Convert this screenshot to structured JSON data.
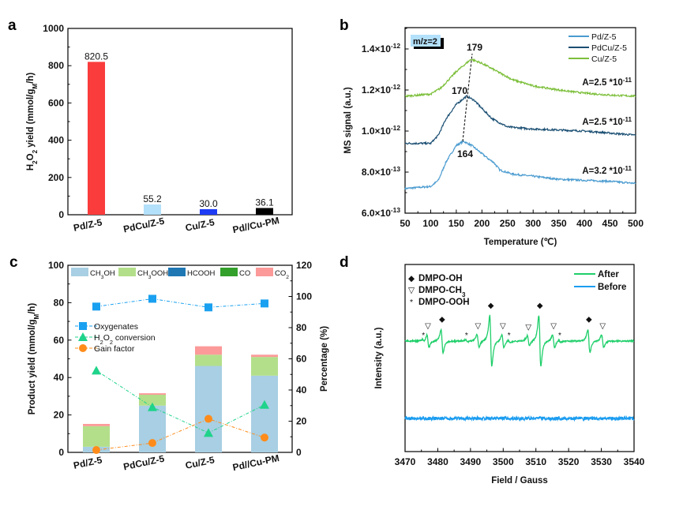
{
  "panels": {
    "a": "a",
    "b": "b",
    "c": "c",
    "d": "d"
  },
  "chart_data": [
    {
      "panel": "a",
      "type": "bar",
      "categories": [
        "Pd/Z-5",
        "PdCu/Z-5",
        "Cu/Z-5",
        "Pd//Cu-PM"
      ],
      "values": [
        820.5,
        55.2,
        30.0,
        36.1
      ],
      "value_labels": [
        "820.5",
        "55.2",
        "30.0",
        "36.1"
      ],
      "colors": [
        "#fa3c3c",
        "#b3e0fb",
        "#1e3cf5",
        "#000000"
      ],
      "ylabel_parts": [
        {
          "t": "H"
        },
        {
          "t": "2",
          "sub": true
        },
        {
          "t": "O"
        },
        {
          "t": "2",
          "sub": true
        },
        {
          "t": " yield (mmol/g"
        },
        {
          "t": "M",
          "sub": true
        },
        {
          "t": "/h)"
        }
      ],
      "ylim": [
        0,
        1000
      ],
      "yticks": [
        0,
        200,
        400,
        600,
        800,
        1000
      ]
    },
    {
      "panel": "b",
      "type": "line",
      "xlabel": "Temperature (℃)",
      "ylabel": "MS signal (a.u.)",
      "xlim": [
        50,
        500
      ],
      "xticks": [
        50,
        100,
        150,
        200,
        250,
        300,
        350,
        400,
        450,
        500
      ],
      "ylim_e13": [
        6,
        15
      ],
      "yticks": [
        {
          "v": 6,
          "base": "6.0×10",
          "exp": "-13"
        },
        {
          "v": 8,
          "base": "8.0×10",
          "exp": "-13"
        },
        {
          "v": 10,
          "base": "1.0×10",
          "exp": "-12"
        },
        {
          "v": 12,
          "base": "1.2×10",
          "exp": "-12"
        },
        {
          "v": 14,
          "base": "1.4×10",
          "exp": "-12"
        }
      ],
      "tag": "m/z=2",
      "series": [
        {
          "name": "Pd/Z-5",
          "color": "#4a9bd0",
          "peak": "164",
          "area": "A=3.2 *10",
          "area_exp": "-11",
          "points": [
            [
              50,
              7.2
            ],
            [
              100,
              7.3
            ],
            [
              115,
              7.6
            ],
            [
              130,
              8.5
            ],
            [
              150,
              9.3
            ],
            [
              164,
              9.5
            ],
            [
              180,
              9.3
            ],
            [
              200,
              8.9
            ],
            [
              215,
              8.6
            ],
            [
              222,
              8.5
            ],
            [
              235,
              8.1
            ],
            [
              260,
              7.9
            ],
            [
              300,
              7.8
            ],
            [
              350,
              7.65
            ],
            [
              400,
              7.6
            ],
            [
              450,
              7.55
            ],
            [
              500,
              7.45
            ]
          ]
        },
        {
          "name": "PdCu/Z-5",
          "color": "#1a4e72",
          "peak": "170",
          "area": "A=2.5 *10",
          "area_exp": "-11",
          "points": [
            [
              50,
              9.4
            ],
            [
              100,
              9.4
            ],
            [
              115,
              9.8
            ],
            [
              130,
              10.6
            ],
            [
              150,
              11.3
            ],
            [
              170,
              11.7
            ],
            [
              185,
              11.5
            ],
            [
              200,
              11.1
            ],
            [
              220,
              10.6
            ],
            [
              250,
              10.2
            ],
            [
              300,
              10.1
            ],
            [
              350,
              10.05
            ],
            [
              400,
              10.0
            ],
            [
              450,
              9.9
            ],
            [
              500,
              9.8
            ]
          ]
        },
        {
          "name": "Cu/Z-5",
          "color": "#7cbf3a",
          "peak": "179",
          "area": "A=2.5 *10",
          "area_exp": "-11",
          "points": [
            [
              50,
              11.7
            ],
            [
              100,
              11.8
            ],
            [
              120,
              12.1
            ],
            [
              150,
              12.9
            ],
            [
              179,
              13.5
            ],
            [
              200,
              13.3
            ],
            [
              230,
              12.9
            ],
            [
              260,
              12.5
            ],
            [
              300,
              12.2
            ],
            [
              350,
              12.0
            ],
            [
              400,
              11.85
            ],
            [
              450,
              11.75
            ],
            [
              500,
              11.7
            ]
          ]
        }
      ]
    },
    {
      "panel": "c",
      "type": "bar",
      "categories": [
        "Pd/Z-5",
        "PdCu/Z-5",
        "Cu/Z-5",
        "Pd//Cu-PM"
      ],
      "ylabel_parts": [
        {
          "t": "Product yield (mmol/g"
        },
        {
          "t": "M",
          "sub": true
        },
        {
          "t": "/h)"
        }
      ],
      "y2label": "Percentage (%)",
      "ylim": [
        0,
        100
      ],
      "y2lim": [
        0,
        120
      ],
      "yticks": [
        0,
        20,
        40,
        60,
        80,
        100
      ],
      "y2ticks": [
        0,
        20,
        40,
        60,
        80,
        100,
        120
      ],
      "stacked_series": [
        {
          "name_parts": [
            {
              "t": "CH"
            },
            {
              "t": "3",
              "sub": true
            },
            {
              "t": "OH"
            }
          ],
          "color": "#a8cfe3",
          "values": [
            3.0,
            25.0,
            46.2,
            41.0
          ]
        },
        {
          "name_parts": [
            {
              "t": "CH"
            },
            {
              "t": "3",
              "sub": true
            },
            {
              "t": "OOH"
            }
          ],
          "color": "#b3df8a",
          "values": [
            11.0,
            5.8,
            6.0,
            10.0
          ]
        },
        {
          "name_parts": [
            {
              "t": "HCOOH"
            }
          ],
          "color": "#1f78b4",
          "values": [
            0,
            0,
            0,
            0
          ]
        },
        {
          "name_parts": [
            {
              "t": "CO"
            }
          ],
          "color": "#33a02c",
          "values": [
            0,
            0,
            0,
            0
          ]
        },
        {
          "name_parts": [
            {
              "t": "CO"
            },
            {
              "t": "2",
              "sub": true
            }
          ],
          "color": "#fb9a99",
          "values": [
            1.2,
            0.8,
            4.5,
            1.2
          ]
        }
      ],
      "line_series": [
        {
          "name_parts": [
            {
              "t": "Oxygenates"
            }
          ],
          "color": "#1aa0f0",
          "marker": "square",
          "values": [
            93.5,
            98.5,
            93.0,
            95.5
          ]
        },
        {
          "name_parts": [
            {
              "t": "H"
            },
            {
              "t": "2",
              "sub": true
            },
            {
              "t": "O"
            },
            {
              "t": "2",
              "sub": true
            },
            {
              "t": " conversion"
            }
          ],
          "color": "#1fd38a",
          "marker": "triangle",
          "values": [
            52.5,
            29.0,
            12.5,
            30.5
          ]
        },
        {
          "name_parts": [
            {
              "t": "Gain factor"
            }
          ],
          "color": "#ff8c1a",
          "marker": "circle",
          "values": [
            1.5,
            6.0,
            21.5,
            9.5
          ]
        }
      ]
    },
    {
      "panel": "d",
      "type": "line",
      "xlabel": "Field / Gauss",
      "ylabel": "Intensity (a.u.)",
      "xlim": [
        3470,
        3540
      ],
      "xticks": [
        3470,
        3480,
        3490,
        3500,
        3510,
        3520,
        3530,
        3540
      ],
      "series": [
        {
          "name": "After",
          "color": "#1fcf6a"
        },
        {
          "name": "Before",
          "color": "#1a9cf0"
        }
      ],
      "markers_legend": [
        {
          "symbol": "◆",
          "parts": [
            {
              "t": "DMPO-OH"
            }
          ]
        },
        {
          "symbol": "▽",
          "parts": [
            {
              "t": "DMPO-CH"
            },
            {
              "t": "3",
              "sub": true
            }
          ]
        },
        {
          "symbol": "*",
          "parts": [
            {
              "t": "DMPO-OOH"
            }
          ]
        }
      ],
      "lines": [
        {
          "type": "DMPO-OH",
          "field": 3481.3,
          "rel": 1.0
        },
        {
          "type": "DMPO-OH",
          "field": 3496.2,
          "rel": 2.2
        },
        {
          "type": "DMPO-OH",
          "field": 3511.2,
          "rel": 2.2
        },
        {
          "type": "DMPO-OH",
          "field": 3526.2,
          "rel": 1.0
        },
        {
          "type": "DMPO-CH3",
          "field": 3477.0,
          "rel": 0.55
        },
        {
          "type": "DMPO-CH3",
          "field": 3492.3,
          "rel": 0.55
        },
        {
          "type": "DMPO-CH3",
          "field": 3499.9,
          "rel": 0.55
        },
        {
          "type": "DMPO-CH3",
          "field": 3507.7,
          "rel": 0.45
        },
        {
          "type": "DMPO-CH3",
          "field": 3515.4,
          "rel": 0.55
        },
        {
          "type": "DMPO-CH3",
          "field": 3530.4,
          "rel": 0.55
        },
        {
          "type": "DMPO-OOH",
          "field": 3475.6,
          "rel": 0.1
        },
        {
          "type": "DMPO-OOH",
          "field": 3488.8,
          "rel": 0.1
        },
        {
          "type": "DMPO-OOH",
          "field": 3501.8,
          "rel": 0.1
        },
        {
          "type": "DMPO-OOH",
          "field": 3517.3,
          "rel": 0.1
        }
      ]
    }
  ]
}
